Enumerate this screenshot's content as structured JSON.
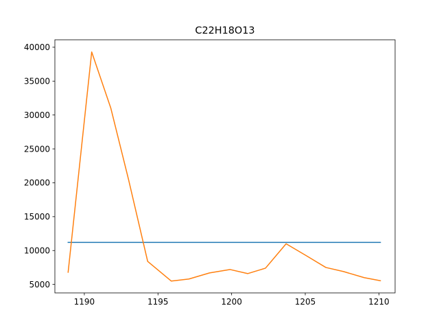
{
  "chart_data": {
    "type": "line",
    "title": "C22H18O13",
    "xlabel": "",
    "ylabel": "",
    "xlim": [
      1188.0,
      1211.1
    ],
    "ylim": [
      3750,
      41100
    ],
    "xticks": [
      1190,
      1195,
      1200,
      1205,
      1210
    ],
    "yticks": [
      5000,
      10000,
      15000,
      20000,
      25000,
      30000,
      35000,
      40000
    ],
    "grid": false,
    "series": [
      {
        "color": "#1f77b4",
        "x": [
          1188.9,
          1210.1
        ],
        "y": [
          11200,
          11200
        ]
      },
      {
        "color": "#ff7f0e",
        "x": [
          1188.9,
          1190.5,
          1191.8,
          1193.0,
          1194.3,
          1195.9,
          1197.1,
          1198.5,
          1199.9,
          1201.1,
          1202.3,
          1203.7,
          1205.1,
          1206.4,
          1207.6,
          1209.0,
          1210.1
        ],
        "y": [
          6800,
          39300,
          31000,
          20500,
          8400,
          5500,
          5800,
          6700,
          7200,
          6600,
          7400,
          11000,
          9200,
          7500,
          6900,
          6000,
          5550
        ]
      }
    ]
  }
}
